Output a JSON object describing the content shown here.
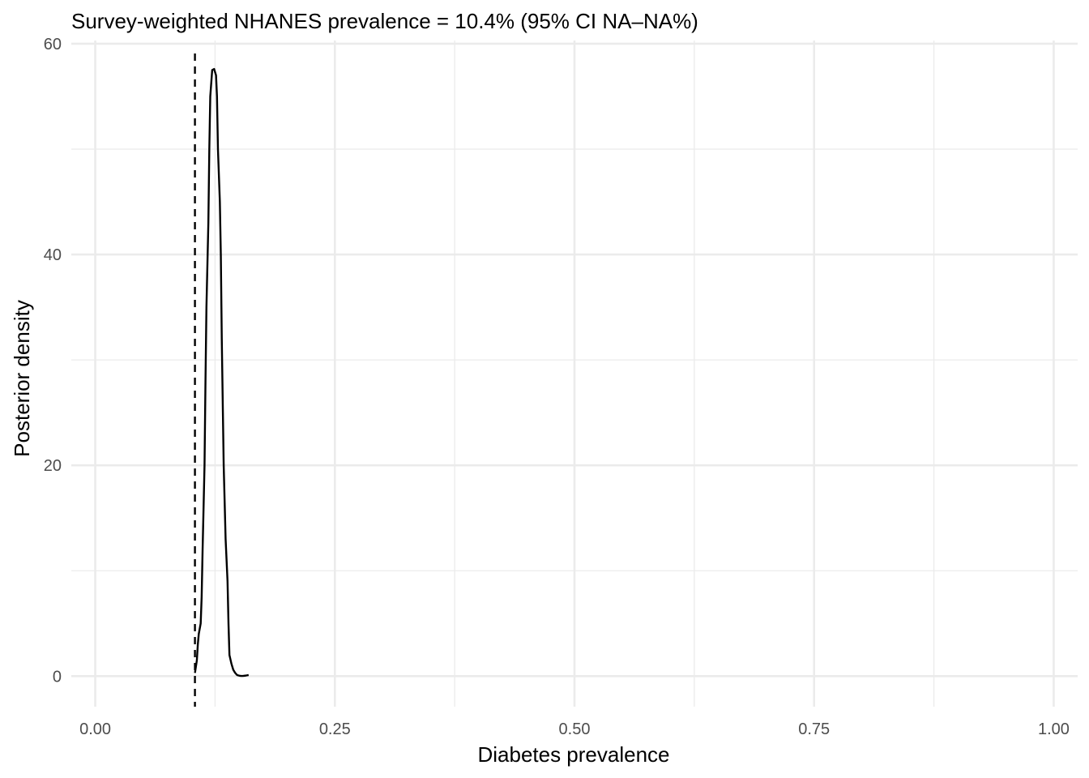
{
  "chart_data": {
    "type": "line",
    "title": "Survey-weighted NHANES prevalence = 10.4% (95% CI NA–NA%)",
    "xlabel": "Diabetes prevalence",
    "ylabel": "Posterior density",
    "xlim": [
      -0.025,
      1.025
    ],
    "ylim": [
      -2.9,
      60.3
    ],
    "x_ticks": [
      0.0,
      0.25,
      0.5,
      0.75,
      1.0
    ],
    "x_tick_labels": [
      "0.00",
      "0.25",
      "0.50",
      "0.75",
      "1.00"
    ],
    "y_ticks": [
      0,
      20,
      40,
      60
    ],
    "y_tick_labels": [
      "0",
      "20",
      "40",
      "60"
    ],
    "grid": true,
    "legend": "none",
    "reference_line": {
      "x": 0.104,
      "style": "dashed"
    },
    "series": [
      {
        "x": [
          0.104,
          0.106,
          0.107,
          0.108,
          0.11,
          0.111,
          0.112,
          0.114,
          0.115,
          0.116,
          0.118,
          0.119,
          0.12,
          0.122,
          0.124,
          0.126,
          0.127,
          0.128,
          0.13,
          0.131,
          0.132,
          0.134,
          0.136,
          0.138,
          0.139,
          0.14,
          0.142,
          0.144,
          0.146,
          0.148,
          0.15,
          0.152,
          0.154,
          0.157,
          0.16
        ],
        "y": [
          0.3,
          1.5,
          3.0,
          4.0,
          5.0,
          7.5,
          12,
          20,
          28,
          35,
          43,
          50,
          55,
          57.5,
          57.6,
          57.0,
          55,
          50,
          45,
          40,
          32,
          20,
          13,
          9,
          5,
          2,
          1.2,
          0.6,
          0.3,
          0.1,
          0.05,
          0.02,
          0.02,
          0.05,
          0.1
        ]
      }
    ]
  }
}
